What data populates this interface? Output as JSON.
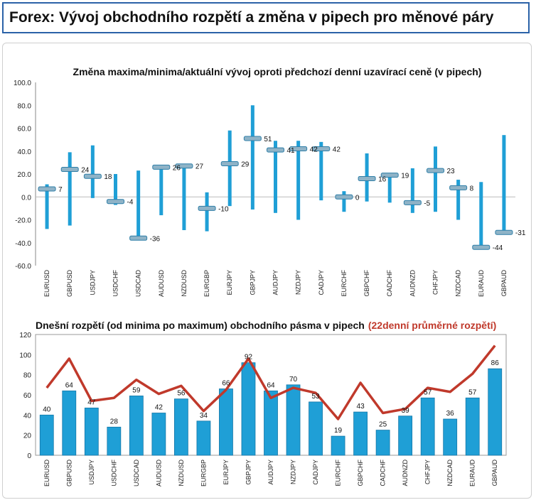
{
  "header": {
    "title": "Forex: Vývoj obchodního rozpětí a změna v pipech pro měnové páry"
  },
  "colors": {
    "bar": "#1f9fd6",
    "line": "#c0392b",
    "marker": "#8fb3c7",
    "header_border": "#2b62a8"
  },
  "chart_data": [
    {
      "type": "range",
      "title": "Změna maxima/minima/aktuální vývoj oproti předchozí denní uzavírací ceně (v pipech)",
      "categories": [
        "EURUSD",
        "GBPUSD",
        "USDJPY",
        "USDCHF",
        "USDCAD",
        "AUDUSD",
        "NZDUSD",
        "EURGBP",
        "EURJPY",
        "GBPJPY",
        "AUDJPY",
        "NZDJPY",
        "CADJPY",
        "EURCHF",
        "GBPCHF",
        "CADCHF",
        "AUDNZD",
        "CHFJPY",
        "NZDCAD",
        "EURAUD",
        "GBPAUD"
      ],
      "high": [
        11,
        39,
        45,
        20,
        23,
        28,
        27,
        4,
        58,
        80,
        49,
        49,
        48,
        5,
        38,
        20,
        25,
        44,
        15,
        13,
        54
      ],
      "low": [
        -28,
        -25,
        -1,
        -7,
        -36,
        -16,
        -29,
        -30,
        -8,
        -11,
        -14,
        -20,
        -3,
        -13,
        -4,
        -5,
        -14,
        -13,
        -20,
        -44,
        -31
      ],
      "current": [
        7,
        24,
        18,
        -4,
        -36,
        26,
        27,
        -10,
        29,
        51,
        41,
        42,
        42,
        0,
        16,
        19,
        -5,
        23,
        8,
        -44,
        -31
      ],
      "labels": [
        "7",
        "24",
        "18",
        "-4",
        "-36",
        "26",
        "27",
        "-10",
        "29",
        "51",
        "41",
        "42",
        "42",
        "0",
        "16",
        "19",
        "-5",
        "23",
        "8",
        "-44",
        "-31"
      ],
      "yticks": [
        "100.0",
        "80.0",
        "60.0",
        "40.0",
        "20.0",
        "0.0",
        "-20.0",
        "-40.0",
        "-60.0"
      ],
      "ylim": [
        -60,
        100
      ]
    },
    {
      "type": "bar",
      "title": "Dnešní rozpětí (od minima po maximum) obchodního pásma v pipech",
      "title_secondary": "(22denní průměrné rozpětí)",
      "categories": [
        "EURUSD",
        "GBPUSD",
        "USDJPY",
        "USDCHF",
        "USDCAD",
        "AUDUSD",
        "NZDUSD",
        "EURGBP",
        "EURJPY",
        "GBPJPY",
        "AUDJPY",
        "NZDJPY",
        "CADJPY",
        "EURCHF",
        "GBPCHF",
        "CADCHF",
        "AUDNZD",
        "CHFJPY",
        "NZDCAD",
        "EURAUD",
        "GBPAUD"
      ],
      "values": [
        40,
        64,
        47,
        28,
        59,
        42,
        56,
        34,
        66,
        92,
        64,
        70,
        53,
        19,
        43,
        25,
        39,
        57,
        36,
        57,
        86
      ],
      "labels": [
        "40",
        "64",
        "47",
        "28",
        "59",
        "42",
        "56",
        "34",
        "66",
        "92",
        "64",
        "70",
        "53",
        "19",
        "43",
        "25",
        "39",
        "57",
        "36",
        "57",
        "86"
      ],
      "average": [
        67,
        96,
        54,
        57,
        75,
        61,
        69,
        44,
        65,
        96,
        57,
        67,
        62,
        36,
        72,
        42,
        46,
        67,
        63,
        81,
        109
      ],
      "yticks": [
        "120",
        "100",
        "80",
        "60",
        "40",
        "20",
        "0"
      ],
      "ylim": [
        0,
        120
      ]
    }
  ]
}
